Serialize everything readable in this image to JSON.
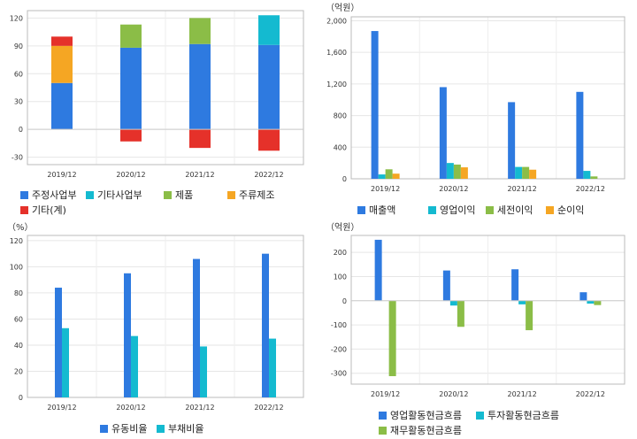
{
  "colors": {
    "blue": "#2e7ae0",
    "cyan": "#14bad0",
    "green": "#8bbd47",
    "orange": "#f5a623",
    "red": "#e5312a"
  },
  "chart_data": [
    {
      "id": "business-mix",
      "type": "bar",
      "stacked": true,
      "categories": [
        "2019/12",
        "2020/12",
        "2021/12",
        "2022/12"
      ],
      "series": [
        {
          "name": "주정사업부",
          "color": "blue",
          "values": [
            50,
            88,
            92,
            91
          ]
        },
        {
          "name": "기타사업부",
          "color": "cyan",
          "values": [
            0,
            0,
            0,
            32
          ]
        },
        {
          "name": "제품",
          "color": "green",
          "values": [
            0,
            25,
            28,
            0
          ]
        },
        {
          "name": "주류제조",
          "color": "orange",
          "values": [
            40,
            0,
            0,
            0
          ]
        },
        {
          "name": "기타(계)",
          "color": "red",
          "values": [
            10,
            -13,
            -20,
            -23
          ]
        }
      ],
      "ylim": [
        -38,
        128
      ],
      "yticks": [
        -30,
        0,
        30,
        60,
        90,
        120
      ],
      "unit": "",
      "grid": true,
      "legend": "bottom"
    },
    {
      "id": "income",
      "type": "bar",
      "stacked": false,
      "categories": [
        "2019/12",
        "2020/12",
        "2021/12",
        "2022/12"
      ],
      "series": [
        {
          "name": "매출액",
          "color": "blue",
          "values": [
            1870,
            1160,
            970,
            1100
          ]
        },
        {
          "name": "영업이익",
          "color": "cyan",
          "values": [
            55,
            200,
            150,
            100
          ]
        },
        {
          "name": "세전이익",
          "color": "green",
          "values": [
            120,
            180,
            150,
            30
          ]
        },
        {
          "name": "순이익",
          "color": "orange",
          "values": [
            65,
            145,
            115,
            0
          ]
        }
      ],
      "ylim": [
        0,
        2050
      ],
      "yticks": [
        0,
        400,
        800,
        1200,
        1600,
        2000
      ],
      "ytick_labels": [
        "0",
        "400",
        "800",
        "1,200",
        "1,600",
        "2,000"
      ],
      "unit": "（억원）",
      "grid": true,
      "legend": "bottom"
    },
    {
      "id": "ratios",
      "type": "bar",
      "stacked": false,
      "categories": [
        "2019/12",
        "2020/12",
        "2021/12",
        "2022/12"
      ],
      "series": [
        {
          "name": "유동비율",
          "color": "blue",
          "values": [
            84,
            95,
            106,
            110
          ]
        },
        {
          "name": "부채비율",
          "color": "cyan",
          "values": [
            53,
            47,
            39,
            45
          ]
        }
      ],
      "ylim": [
        0,
        124
      ],
      "yticks": [
        0,
        20,
        40,
        60,
        80,
        100,
        120
      ],
      "unit": "（%）",
      "grid": true,
      "legend": "bottom"
    },
    {
      "id": "cashflow",
      "type": "bar",
      "stacked": false,
      "categories": [
        "2019/12",
        "2020/12",
        "2021/12",
        "2022/12"
      ],
      "series": [
        {
          "name": "영업활동현금흐름",
          "color": "blue",
          "values": [
            252,
            125,
            130,
            35
          ]
        },
        {
          "name": "투자활동현금흐름",
          "color": "cyan",
          "values": [
            0,
            -20,
            -15,
            -12
          ]
        },
        {
          "name": "재무활동현금흐름",
          "color": "green",
          "values": [
            -312,
            -108,
            -122,
            -18
          ]
        }
      ],
      "ylim": [
        -345,
        270
      ],
      "yticks": [
        -300,
        -200,
        -100,
        0,
        100,
        200
      ],
      "ytick_labels": [
        "-300",
        "-200",
        "-100",
        "0",
        "100",
        "200"
      ],
      "unit": "（억원）",
      "grid": true,
      "legend": "bottom"
    }
  ]
}
